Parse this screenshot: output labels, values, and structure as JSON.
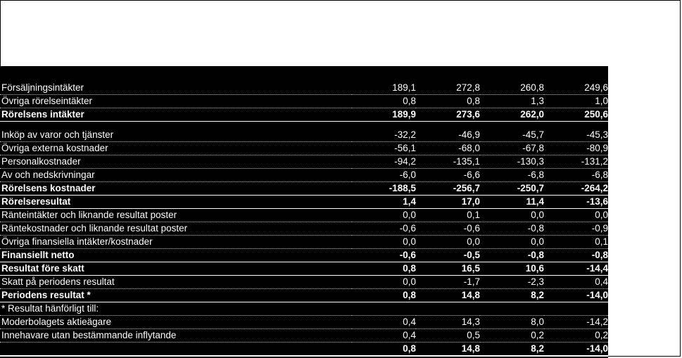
{
  "rows": [
    {
      "label": "Försäljningsintäkter",
      "values": [
        "189,1",
        "272,8",
        "260,8",
        "249,6"
      ],
      "style": "normal"
    },
    {
      "label": "Övriga rörelseintäkter",
      "values": [
        "0,8",
        "0,8",
        "1,3",
        "1,0"
      ],
      "style": "normal"
    },
    {
      "label": "Rörelsens intäkter",
      "values": [
        "189,9",
        "273,6",
        "262,0",
        "250,6"
      ],
      "style": "bold"
    },
    {
      "label": "Inköp av varor och tjänster",
      "values": [
        "-32,2",
        "-46,9",
        "-45,7",
        "-45,3"
      ],
      "style": "gap"
    },
    {
      "label": "Övriga externa kostnader",
      "values": [
        "-56,1",
        "-68,0",
        "-67,8",
        "-80,9"
      ],
      "style": "normal"
    },
    {
      "label": "Personalkostnader",
      "values": [
        "-94,2",
        "-135,1",
        "-130,3",
        "-131,2"
      ],
      "style": "normal"
    },
    {
      "label": "Av och nedskrivningar",
      "values": [
        "-6,0",
        "-6,6",
        "-6,8",
        "-6,8"
      ],
      "style": "normal"
    },
    {
      "label": "Rörelsens kostnader",
      "values": [
        "-188,5",
        "-256,7",
        "-250,7",
        "-264,2"
      ],
      "style": "bold"
    },
    {
      "label": "Rörelseresultat",
      "values": [
        "1,4",
        "17,0",
        "11,4",
        "-13,6"
      ],
      "style": "bold"
    },
    {
      "label": "Ränteintäkter och liknande resultat poster",
      "values": [
        "0,0",
        "0,1",
        "0,0",
        "0,0"
      ],
      "style": "normal"
    },
    {
      "label": "Räntekostnader och liknande resultat poster",
      "values": [
        "-0,6",
        "-0,6",
        "-0,8",
        "-0,9"
      ],
      "style": "normal"
    },
    {
      "label": "Övriga finansiella intäkter/kostnader",
      "values": [
        "0,0",
        "0,0",
        "0,0",
        "0,1"
      ],
      "style": "normal"
    },
    {
      "label": "Finansiellt netto",
      "values": [
        "-0,6",
        "-0,5",
        "-0,8",
        "-0,8"
      ],
      "style": "bold"
    },
    {
      "label": "Resultat före skatt",
      "values": [
        "0,8",
        "16,5",
        "10,6",
        "-14,4"
      ],
      "style": "bold"
    },
    {
      "label": "Skatt på periodens resultat",
      "values": [
        "0,0",
        "-1,7",
        "-2,3",
        "0,4"
      ],
      "style": "normal"
    },
    {
      "label": "Periodens resultat *",
      "values": [
        "0,8",
        "14,8",
        "8,2",
        "-14,0"
      ],
      "style": "bold"
    },
    {
      "label": "* Resultat hänförligt till:",
      "values": [
        "",
        "",
        "",
        ""
      ],
      "style": "note"
    },
    {
      "label": "Moderbolagets aktieägare",
      "values": [
        "0,4",
        "14,3",
        "8,0",
        "-14,2"
      ],
      "style": "normal"
    },
    {
      "label": "Innehavare utan bestämmande inflytande",
      "values": [
        "0,4",
        "0,5",
        "0,2",
        "0,2"
      ],
      "style": "normal"
    },
    {
      "label": "",
      "values": [
        "0,8",
        "14,8",
        "8,2",
        "-14,0"
      ],
      "style": "final"
    }
  ]
}
